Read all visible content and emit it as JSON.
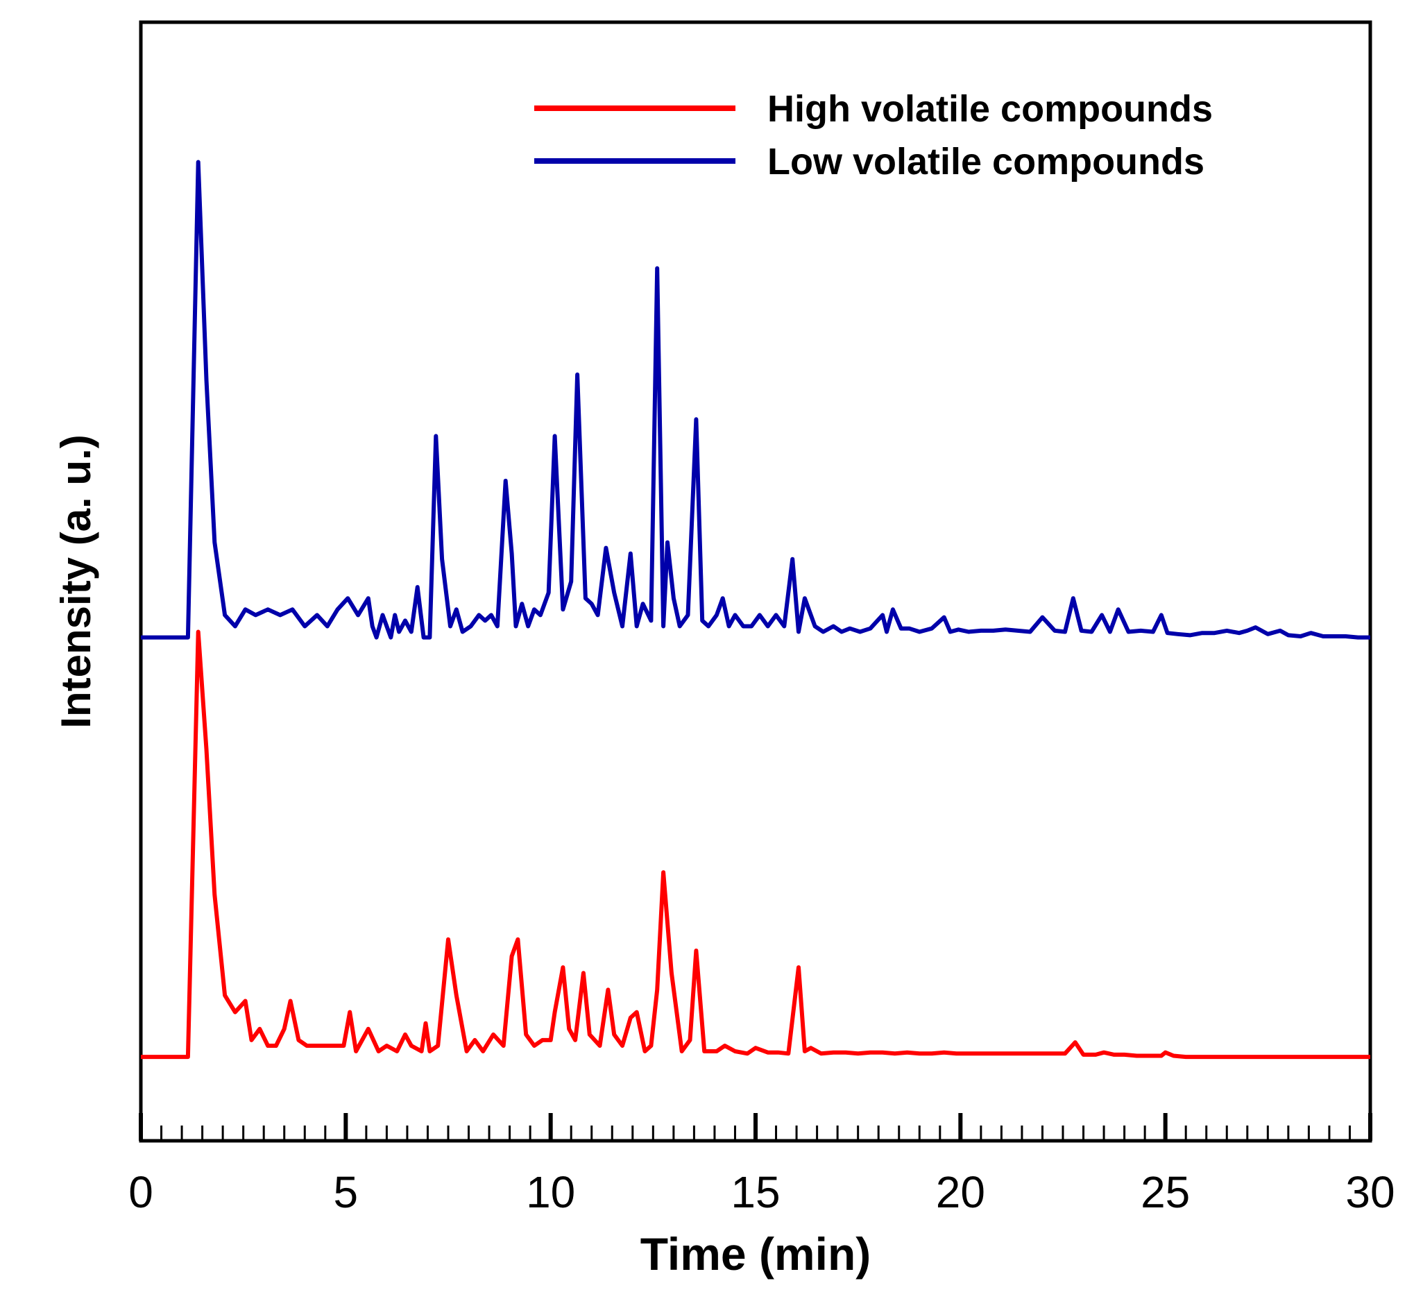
{
  "chart_data": {
    "type": "line",
    "title": "",
    "xlabel": "Time (min)",
    "ylabel": "Intensity (a. u.)",
    "xlim": [
      0,
      30
    ],
    "ylim": [
      0,
      100
    ],
    "x_ticks": [
      0,
      5,
      10,
      15,
      20,
      25,
      30
    ],
    "x_tick_labels": [
      "0",
      "5",
      "10",
      "15",
      "20",
      "25",
      "30"
    ],
    "y_ticks_shown": false,
    "grid": false,
    "legend_position": "top-right",
    "series": [
      {
        "name": "High volatile compounds",
        "color": "#ff0000",
        "x": [
          0,
          1.15,
          1.4,
          1.6,
          1.8,
          2.05,
          2.3,
          2.55,
          2.7,
          2.9,
          3.1,
          3.3,
          3.5,
          3.65,
          3.85,
          4.05,
          4.25,
          4.45,
          4.75,
          4.95,
          5.1,
          5.25,
          5.55,
          5.8,
          6.0,
          6.25,
          6.45,
          6.6,
          6.85,
          6.95,
          7.05,
          7.25,
          7.5,
          7.7,
          7.95,
          8.15,
          8.35,
          8.6,
          8.85,
          9.05,
          9.2,
          9.4,
          9.6,
          9.8,
          10.0,
          10.1,
          10.3,
          10.45,
          10.6,
          10.8,
          10.95,
          11.2,
          11.4,
          11.55,
          11.75,
          11.95,
          12.1,
          12.3,
          12.45,
          12.6,
          12.75,
          12.95,
          13.2,
          13.4,
          13.55,
          13.75,
          14.05,
          14.25,
          14.5,
          14.8,
          15.0,
          15.3,
          15.55,
          15.8,
          16.05,
          16.2,
          16.35,
          16.6,
          16.9,
          17.2,
          17.5,
          17.8,
          18.1,
          18.4,
          18.7,
          19.0,
          19.3,
          19.6,
          19.9,
          20.2,
          20.5,
          20.8,
          21.1,
          21.4,
          21.7,
          22.0,
          22.3,
          22.55,
          22.8,
          23.0,
          23.3,
          23.5,
          23.75,
          24.0,
          24.3,
          24.6,
          24.9,
          25.0,
          25.2,
          25.5,
          25.8,
          26.1,
          26.4,
          26.7,
          27.0,
          27.3,
          27.6,
          27.9,
          28.2,
          28.5,
          28.8,
          29.1,
          29.4,
          29.7,
          30.0
        ],
        "y": [
          7.5,
          7.5,
          45.5,
          35.0,
          22.0,
          13.0,
          11.5,
          12.5,
          9.0,
          10.0,
          8.5,
          8.5,
          10.0,
          12.5,
          9.0,
          8.5,
          8.5,
          8.5,
          8.5,
          8.5,
          11.5,
          8.0,
          10.0,
          8.0,
          8.5,
          8.0,
          9.5,
          8.5,
          8.0,
          10.5,
          8.0,
          8.5,
          18.0,
          13.0,
          8.0,
          9.0,
          8.0,
          9.5,
          8.5,
          16.5,
          18.0,
          9.5,
          8.5,
          9.0,
          9.0,
          11.5,
          15.5,
          10.0,
          9.0,
          15.0,
          9.5,
          8.5,
          13.5,
          9.5,
          8.5,
          11.0,
          11.5,
          8.0,
          8.5,
          13.5,
          24.0,
          15.0,
          8.0,
          9.0,
          17.0,
          8.0,
          8.0,
          8.5,
          8.0,
          7.8,
          8.3,
          7.9,
          7.9,
          7.8,
          15.5,
          8.0,
          8.3,
          7.8,
          7.9,
          7.9,
          7.8,
          7.9,
          7.9,
          7.8,
          7.9,
          7.8,
          7.8,
          7.9,
          7.8,
          7.8,
          7.8,
          7.8,
          7.8,
          7.8,
          7.8,
          7.8,
          7.8,
          7.8,
          8.8,
          7.7,
          7.7,
          7.9,
          7.7,
          7.7,
          7.6,
          7.6,
          7.6,
          7.9,
          7.6,
          7.5,
          7.5,
          7.5,
          7.5,
          7.5,
          7.5,
          7.5,
          7.5,
          7.5,
          7.5,
          7.5,
          7.5,
          7.5,
          7.5,
          7.5,
          7.5
        ]
      },
      {
        "name": "Low volatile compounds",
        "color": "#0000aa",
        "x": [
          0,
          1.15,
          1.4,
          1.6,
          1.8,
          2.05,
          2.3,
          2.55,
          2.8,
          3.1,
          3.4,
          3.7,
          4.0,
          4.3,
          4.55,
          4.8,
          5.05,
          5.3,
          5.55,
          5.65,
          5.75,
          5.9,
          6.1,
          6.2,
          6.3,
          6.45,
          6.6,
          6.75,
          6.9,
          7.05,
          7.2,
          7.35,
          7.55,
          7.7,
          7.85,
          8.05,
          8.25,
          8.4,
          8.55,
          8.7,
          8.9,
          9.05,
          9.15,
          9.3,
          9.45,
          9.6,
          9.75,
          9.95,
          10.1,
          10.3,
          10.5,
          10.65,
          10.85,
          11.0,
          11.15,
          11.35,
          11.55,
          11.75,
          11.95,
          12.1,
          12.25,
          12.45,
          12.6,
          12.75,
          12.85,
          13.0,
          13.15,
          13.35,
          13.55,
          13.7,
          13.85,
          14.05,
          14.2,
          14.35,
          14.5,
          14.7,
          14.9,
          15.1,
          15.3,
          15.5,
          15.7,
          15.9,
          16.05,
          16.2,
          16.45,
          16.65,
          16.9,
          17.1,
          17.3,
          17.55,
          17.8,
          18.1,
          18.2,
          18.35,
          18.55,
          18.75,
          19.0,
          19.3,
          19.6,
          19.75,
          19.95,
          20.2,
          20.5,
          20.8,
          21.1,
          21.4,
          21.7,
          22.0,
          22.3,
          22.55,
          22.75,
          22.95,
          23.2,
          23.45,
          23.65,
          23.85,
          24.1,
          24.4,
          24.7,
          24.9,
          25.05,
          25.3,
          25.6,
          25.9,
          26.2,
          26.5,
          26.8,
          27.0,
          27.2,
          27.5,
          27.8,
          28.0,
          28.3,
          28.55,
          28.85,
          29.1,
          29.4,
          29.7,
          30.0
        ],
        "y": [
          45.0,
          45.0,
          87.5,
          68.0,
          53.5,
          47.0,
          46.0,
          47.5,
          47.0,
          47.5,
          47.0,
          47.5,
          46.0,
          47.0,
          46.0,
          47.5,
          48.5,
          47.0,
          48.5,
          46.0,
          45.0,
          47.0,
          45.0,
          47.0,
          45.5,
          46.5,
          45.5,
          49.5,
          45.0,
          45.0,
          63.0,
          52.0,
          46.0,
          47.5,
          45.5,
          46.0,
          47.0,
          46.5,
          47.0,
          46.0,
          59.0,
          52.5,
          46.0,
          48.0,
          46.0,
          47.5,
          47.0,
          49.0,
          63.0,
          47.5,
          50.0,
          68.5,
          48.5,
          48.0,
          47.0,
          53.0,
          49.0,
          46.0,
          52.5,
          46.0,
          48.0,
          46.5,
          78.0,
          46.0,
          53.5,
          48.5,
          46.0,
          47.0,
          64.5,
          46.5,
          46.0,
          47.0,
          48.5,
          46.0,
          47.0,
          46.0,
          46.0,
          47.0,
          46.0,
          47.0,
          46.0,
          52.0,
          45.5,
          48.5,
          46.0,
          45.5,
          46.0,
          45.5,
          45.8,
          45.5,
          45.8,
          47.0,
          45.5,
          47.5,
          45.8,
          45.8,
          45.5,
          45.8,
          46.8,
          45.5,
          45.7,
          45.5,
          45.6,
          45.6,
          45.7,
          45.6,
          45.5,
          46.8,
          45.6,
          45.5,
          48.5,
          45.6,
          45.5,
          47.0,
          45.5,
          47.5,
          45.5,
          45.6,
          45.5,
          47.0,
          45.4,
          45.3,
          45.2,
          45.4,
          45.4,
          45.6,
          45.4,
          45.6,
          45.9,
          45.3,
          45.6,
          45.2,
          45.1,
          45.4,
          45.1,
          45.1,
          45.1,
          45.0,
          45.0
        ]
      }
    ]
  }
}
